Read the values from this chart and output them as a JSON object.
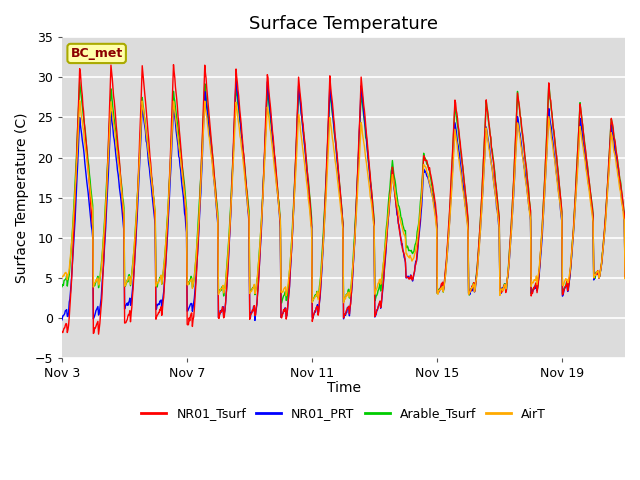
{
  "title": "Surface Temperature",
  "ylabel": "Surface Temperature (C)",
  "xlabel": "Time",
  "ylim": [
    -5,
    35
  ],
  "yticks": [
    -5,
    0,
    5,
    10,
    15,
    20,
    25,
    30,
    35
  ],
  "xtick_labels": [
    "Nov 3",
    "Nov 7",
    "Nov 11",
    "Nov 15",
    "Nov 19"
  ],
  "xtick_days": [
    3,
    7,
    11,
    15,
    19
  ],
  "annotation_text": "BC_met",
  "colors": {
    "NR01_Tsurf": "#ff0000",
    "NR01_PRT": "#0000ff",
    "Arable_Tsurf": "#00cc00",
    "AirT": "#ffaa00"
  },
  "background_color": "#dcdcdc",
  "figure_background": "#ffffff",
  "grid_color": "#ffffff",
  "title_fontsize": 13,
  "axis_fontsize": 10,
  "tick_fontsize": 9
}
